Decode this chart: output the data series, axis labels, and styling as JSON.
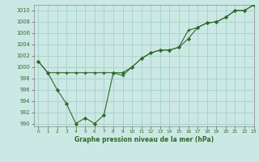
{
  "title": "Graphe pression niveau de la mer (hPa)",
  "background_color": "#cce8e4",
  "grid_color": "#a8d4cf",
  "line_color": "#2d6b2d",
  "xlim": [
    -0.5,
    23
  ],
  "ylim": [
    989.5,
    1011
  ],
  "yticks": [
    990,
    992,
    994,
    996,
    998,
    1000,
    1002,
    1004,
    1006,
    1008,
    1010
  ],
  "xticks": [
    0,
    1,
    2,
    3,
    4,
    5,
    6,
    7,
    8,
    9,
    10,
    11,
    12,
    13,
    14,
    15,
    16,
    17,
    18,
    19,
    20,
    21,
    22,
    23
  ],
  "series1_x": [
    0,
    1,
    2,
    3,
    4,
    5,
    6,
    7,
    8,
    9,
    10,
    11,
    12,
    13,
    14,
    15,
    16,
    17,
    18,
    19,
    20,
    21,
    22,
    23
  ],
  "series1_y": [
    1001,
    999,
    996,
    993.5,
    990,
    991,
    990,
    991.5,
    999,
    999,
    1000,
    1001.5,
    1002.5,
    1003,
    1003,
    1003.5,
    1005,
    1007,
    1007.8,
    1008,
    1008.8,
    1010,
    1010,
    1011
  ],
  "series2_x": [
    0,
    1,
    2,
    3,
    4,
    5,
    6,
    7,
    8,
    9,
    10,
    11,
    12,
    13,
    14,
    15,
    16,
    17,
    18,
    19,
    20,
    21,
    22,
    23
  ],
  "series2_y": [
    1001,
    999,
    999,
    999,
    999,
    999,
    999,
    999,
    999,
    998.5,
    1000,
    1001.5,
    1002.5,
    1003,
    1003,
    1003.5,
    1006.5,
    1007,
    1007.8,
    1008,
    1008.8,
    1010,
    1010,
    1011
  ]
}
